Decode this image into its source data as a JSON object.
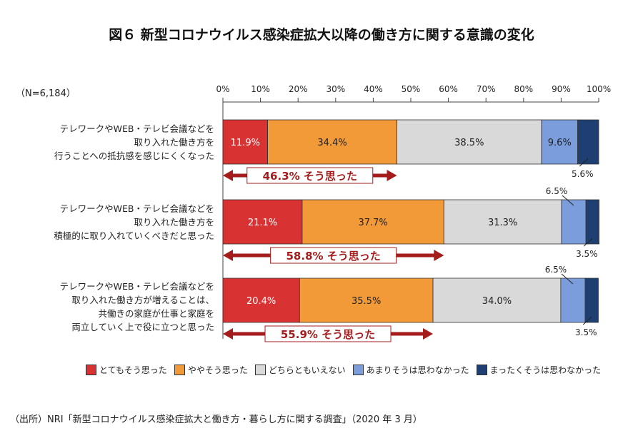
{
  "title": "図６ 新型コロナウイルス感染症拡大以降の働き方に関する意識の変化",
  "sample": "（N=6,184）",
  "source": "（出所）NRI「新型コロナウイルス感染症拡大と働き方・暮らし方に関する調査」（2020 年 3 月）",
  "chart_data": {
    "type": "bar",
    "orientation": "horizontal-stacked-100",
    "xlim": [
      0,
      100
    ],
    "ticks": [
      "0%",
      "10%",
      "20%",
      "30%",
      "40%",
      "50%",
      "60%",
      "70%",
      "80%",
      "90%",
      "100%"
    ],
    "categories": [
      [
        "テレワークやWEB・テレビ会議などを",
        "取り入れた働き方を",
        "行うことへの抵抗感を感じにくくなった"
      ],
      [
        "テレワークやWEB・テレビ会議などを",
        "取り入れた働き方を",
        "積極的に取り入れていくべきだと思った"
      ],
      [
        "テレワークやWEB・テレビ会議などを",
        "取り入れた働き方が増えることは、",
        "共働きの家庭が仕事と家庭を",
        "両立していく上で役に立つと思った"
      ]
    ],
    "series": [
      {
        "name": "とてもそう思った",
        "color": "#d93232",
        "values": [
          11.9,
          21.1,
          20.4
        ]
      },
      {
        "name": "ややそう思った",
        "color": "#f39a38",
        "values": [
          34.4,
          37.7,
          35.5
        ]
      },
      {
        "name": "どちらともいえない",
        "color": "#d9d9d9",
        "values": [
          38.5,
          31.3,
          34.0
        ]
      },
      {
        "name": "あまりそうは思わなかった",
        "color": "#7b9ddc",
        "values": [
          9.6,
          6.5,
          6.5
        ]
      },
      {
        "name": "まったくそうは思わなかった",
        "color": "#1f3f73",
        "values": [
          5.6,
          3.5,
          3.5
        ]
      }
    ],
    "annotations": [
      "46.3% そう思った",
      "58.8% そう思った",
      "55.9% そう思った"
    ],
    "annotation_color": "#a51c1c"
  }
}
